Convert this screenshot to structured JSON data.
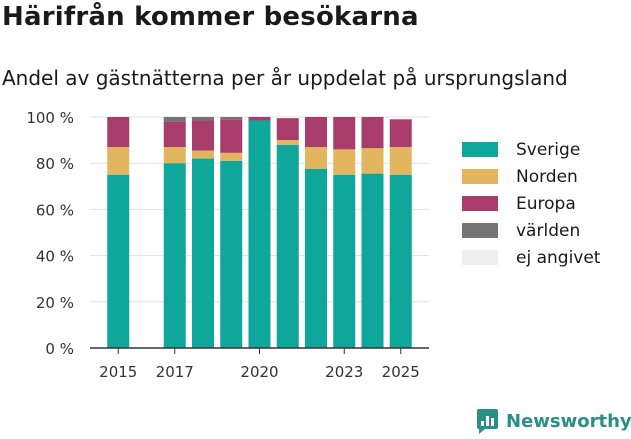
{
  "title": "Härifrån kommer besökarna",
  "subtitle": "Andel av gästnätterna per år uppdelat på ursprungsland",
  "brand": {
    "name": "Newsworthy",
    "icon": "newsworthy-logo-icon",
    "color": "#2a8f87"
  },
  "chart_data": {
    "type": "bar",
    "stacked": true,
    "title": "Härifrån kommer besökarna",
    "subtitle": "Andel av gästnätterna per år uppdelat på ursprungsland",
    "xlabel": "",
    "ylabel": "",
    "x": [
      2015,
      2017,
      2018,
      2019,
      2020,
      2021,
      2022,
      2023,
      2024,
      2025
    ],
    "xticks": [
      "2015",
      "2017",
      "2020",
      "2023",
      "2025"
    ],
    "yticks": [
      "0 %",
      "20 %",
      "40 %",
      "60 %",
      "80 %",
      "100 %"
    ],
    "ylim": [
      0,
      100
    ],
    "grid": true,
    "legend_position": "right",
    "series": [
      {
        "name": "Sverige",
        "color": "#0fa69b",
        "values": [
          75,
          80,
          82,
          81,
          98.5,
          88,
          77.5,
          75,
          75.5,
          75
        ]
      },
      {
        "name": "Norden",
        "color": "#e3b55f",
        "values": [
          12,
          7,
          3.5,
          3.5,
          0,
          2,
          9.5,
          11,
          11,
          12
        ]
      },
      {
        "name": "Europa",
        "color": "#a83d6b",
        "values": [
          13,
          11,
          13,
          14.5,
          1.5,
          9.5,
          13,
          14,
          13.5,
          12
        ]
      },
      {
        "name": "världen",
        "color": "#747474",
        "values": [
          0,
          2,
          1.5,
          1,
          0,
          0,
          0,
          0,
          0,
          0
        ]
      },
      {
        "name": "ej angivet",
        "color": "#eeeeee",
        "values": [
          0,
          0,
          0,
          0,
          0,
          0,
          0,
          0,
          0,
          0
        ]
      }
    ]
  }
}
